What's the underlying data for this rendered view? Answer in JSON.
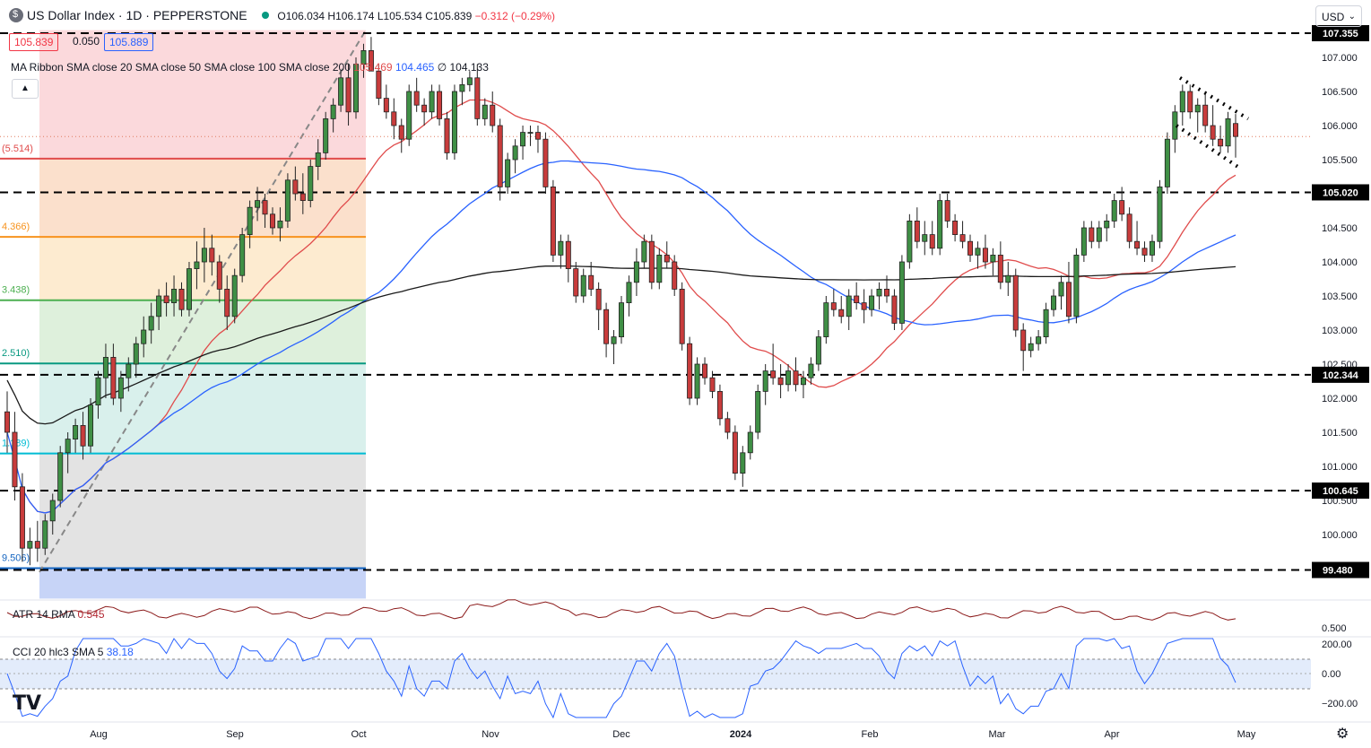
{
  "header": {
    "symbol_title": "US Dollar Index · 1D · PEPPERSTONE",
    "ohlc": "O106.034 H106.174 L105.534 C105.839",
    "change": "−0.312 (−0.29%)",
    "icon": "dollar-icon",
    "status_color": "#089981"
  },
  "price_boxes": {
    "bid": "105.839",
    "spread": "0.050",
    "ask": "105.889"
  },
  "indicators": {
    "ma_ribbon_label": "MA Ribbon SMA close 20 SMA close 50 SMA close 100 SMA close 200",
    "ma_ribbon_values": [
      "105.469",
      "104.465",
      "104.133"
    ],
    "ma_colors": {
      "sma20": "#e04c4c",
      "sma50": "#2962ff",
      "sma200": "#1a1a1a"
    },
    "atr_label": "ATR 14 RMA",
    "atr_value": "0.545",
    "cci_label": "CCI 20 hlc3 SMA 5",
    "cci_value": "38.18"
  },
  "currency_selector": {
    "value": "USD",
    "icon": "chevron-down-icon"
  },
  "collapse_button_icon": "chevron-up-icon",
  "settings_icon": "gear-icon",
  "logo_text": "TV",
  "chart_data": {
    "type": "candlestick",
    "xlabels": [
      "Aug",
      "Sep",
      "Oct",
      "Nov",
      "Dec",
      "2024",
      "Feb",
      "Mar",
      "Apr",
      "May"
    ],
    "price_ticks": [
      "107.000",
      "106.500",
      "106.000",
      "105.500",
      "104.500",
      "104.000",
      "103.500",
      "103.000",
      "102.500",
      "102.000",
      "101.500",
      "101.000",
      "100.500",
      "100.000"
    ],
    "atr_ticks": [
      "0.500"
    ],
    "cci_ticks": [
      "200.00",
      "0.00",
      "−200.00"
    ],
    "ylim": [
      99.3,
      107.5
    ],
    "horizontal_levels": [
      {
        "value": 107.355,
        "label": "107.355"
      },
      {
        "value": 105.02,
        "label": "105.020"
      },
      {
        "value": 102.344,
        "label": "102.344"
      },
      {
        "value": 100.645,
        "label": "100.645"
      },
      {
        "value": 99.48,
        "label": "99.480"
      }
    ],
    "fib_levels": [
      {
        "value": 105.514,
        "label": "(5.514)",
        "color": "#e04c4c",
        "fill": "#fbe0cc"
      },
      {
        "value": 104.366,
        "label": "4.366)",
        "color": "#f7931e",
        "fill": "#fdebd0"
      },
      {
        "value": 103.438,
        "label": "3.438)",
        "color": "#4caf50",
        "fill": "#def0dc"
      },
      {
        "value": 102.51,
        "label": "2.510)",
        "color": "#089981",
        "fill": "#d9f0ec"
      },
      {
        "value": 101.189,
        "label": "1.189)",
        "color": "#00bcd4",
        "fill": "#d6f2f6"
      },
      {
        "value": 99.506,
        "label": "9.506)",
        "color": "#1565c0",
        "fill": "#e0e0e0"
      }
    ],
    "candles": [
      [
        101.8,
        102.1,
        101.2,
        101.5
      ],
      [
        101.5,
        101.8,
        100.5,
        100.7
      ],
      [
        100.7,
        100.9,
        99.6,
        99.8
      ],
      [
        99.8,
        100.1,
        99.55,
        99.9
      ],
      [
        99.9,
        100.2,
        99.6,
        99.8
      ],
      [
        99.8,
        100.3,
        99.7,
        100.2
      ],
      [
        100.2,
        100.6,
        100.0,
        100.5
      ],
      [
        100.5,
        101.3,
        100.4,
        101.2
      ],
      [
        101.2,
        101.5,
        100.9,
        101.4
      ],
      [
        101.4,
        101.7,
        101.2,
        101.6
      ],
      [
        101.6,
        101.8,
        101.1,
        101.3
      ],
      [
        101.3,
        102.0,
        101.2,
        101.9
      ],
      [
        101.9,
        102.4,
        101.7,
        102.3
      ],
      [
        102.3,
        102.8,
        102.0,
        102.6
      ],
      [
        102.6,
        102.8,
        101.9,
        102.0
      ],
      [
        102.0,
        102.4,
        101.8,
        102.3
      ],
      [
        102.3,
        102.6,
        102.1,
        102.5
      ],
      [
        102.5,
        102.9,
        102.3,
        102.8
      ],
      [
        102.8,
        103.2,
        102.6,
        103.0
      ],
      [
        103.0,
        103.4,
        102.8,
        103.2
      ],
      [
        103.2,
        103.6,
        103.0,
        103.5
      ],
      [
        103.5,
        103.7,
        103.2,
        103.4
      ],
      [
        103.4,
        103.8,
        103.2,
        103.6
      ],
      [
        103.6,
        103.7,
        103.2,
        103.3
      ],
      [
        103.3,
        104.0,
        103.2,
        103.9
      ],
      [
        103.9,
        104.3,
        103.6,
        104.0
      ],
      [
        104.0,
        104.5,
        103.7,
        104.2
      ],
      [
        104.2,
        104.4,
        103.8,
        104.0
      ],
      [
        104.0,
        104.1,
        103.4,
        103.6
      ],
      [
        103.6,
        103.8,
        103.0,
        103.2
      ],
      [
        103.2,
        103.9,
        103.1,
        103.8
      ],
      [
        103.8,
        104.5,
        103.7,
        104.4
      ],
      [
        104.4,
        104.9,
        104.2,
        104.8
      ],
      [
        104.8,
        105.1,
        104.6,
        104.9
      ],
      [
        104.9,
        105.0,
        104.5,
        104.7
      ],
      [
        104.7,
        104.8,
        104.4,
        104.5
      ],
      [
        104.5,
        104.8,
        104.3,
        104.6
      ],
      [
        104.6,
        105.3,
        104.5,
        105.2
      ],
      [
        105.2,
        105.4,
        104.9,
        105.0
      ],
      [
        105.0,
        105.3,
        104.7,
        104.9
      ],
      [
        104.9,
        105.5,
        104.8,
        105.4
      ],
      [
        105.4,
        105.8,
        105.2,
        105.6
      ],
      [
        105.6,
        106.2,
        105.5,
        106.1
      ],
      [
        106.1,
        106.4,
        105.9,
        106.3
      ],
      [
        106.3,
        106.8,
        106.2,
        106.7
      ],
      [
        106.7,
        106.9,
        106.0,
        106.2
      ],
      [
        106.2,
        107.0,
        106.1,
        106.9
      ],
      [
        106.9,
        107.2,
        106.7,
        107.1
      ],
      [
        107.1,
        107.3,
        106.8,
        106.8
      ],
      [
        106.8,
        106.9,
        106.3,
        106.4
      ],
      [
        106.4,
        106.6,
        106.1,
        106.2
      ],
      [
        106.2,
        106.4,
        105.8,
        106.0
      ],
      [
        106.0,
        106.1,
        105.6,
        105.8
      ],
      [
        105.8,
        106.6,
        105.7,
        106.5
      ],
      [
        106.5,
        106.7,
        106.2,
        106.3
      ],
      [
        106.3,
        106.4,
        106.0,
        106.2
      ],
      [
        106.2,
        106.6,
        106.1,
        106.5
      ],
      [
        106.5,
        106.6,
        106.0,
        106.1
      ],
      [
        106.1,
        106.2,
        105.5,
        105.6
      ],
      [
        105.6,
        106.6,
        105.5,
        106.5
      ],
      [
        106.5,
        106.7,
        106.3,
        106.6
      ],
      [
        106.6,
        106.8,
        106.5,
        106.7
      ],
      [
        106.7,
        106.9,
        106.0,
        106.1
      ],
      [
        106.1,
        106.4,
        106.0,
        106.3
      ],
      [
        106.3,
        106.5,
        105.9,
        106.0
      ],
      [
        106.0,
        106.1,
        104.9,
        105.1
      ],
      [
        105.1,
        105.6,
        105.0,
        105.5
      ],
      [
        105.5,
        105.8,
        105.3,
        105.7
      ],
      [
        105.7,
        106.0,
        105.5,
        105.9
      ],
      [
        105.9,
        106.0,
        105.7,
        105.9
      ],
      [
        105.9,
        106.0,
        105.6,
        105.8
      ],
      [
        105.8,
        105.9,
        105.0,
        105.1
      ],
      [
        105.1,
        105.2,
        104.0,
        104.1
      ],
      [
        104.1,
        104.4,
        103.9,
        104.3
      ],
      [
        104.3,
        104.4,
        103.7,
        103.9
      ],
      [
        103.9,
        104.0,
        103.4,
        103.5
      ],
      [
        103.5,
        103.9,
        103.4,
        103.8
      ],
      [
        103.8,
        104.0,
        103.5,
        103.6
      ],
      [
        103.6,
        103.7,
        103.0,
        103.3
      ],
      [
        103.3,
        103.4,
        102.6,
        102.8
      ],
      [
        102.8,
        103.0,
        102.5,
        102.9
      ],
      [
        102.9,
        103.5,
        102.8,
        103.4
      ],
      [
        103.4,
        103.8,
        103.2,
        103.7
      ],
      [
        103.7,
        104.2,
        103.5,
        104.0
      ],
      [
        104.0,
        104.4,
        103.9,
        104.3
      ],
      [
        104.3,
        104.4,
        103.6,
        103.7
      ],
      [
        103.7,
        104.2,
        103.6,
        104.1
      ],
      [
        104.1,
        104.3,
        103.9,
        104.0
      ],
      [
        104.0,
        104.1,
        103.5,
        103.6
      ],
      [
        103.6,
        103.7,
        102.7,
        102.8
      ],
      [
        102.8,
        102.9,
        101.9,
        102.0
      ],
      [
        102.0,
        102.6,
        101.9,
        102.5
      ],
      [
        102.5,
        102.6,
        102.2,
        102.3
      ],
      [
        102.3,
        102.4,
        102.0,
        102.1
      ],
      [
        102.1,
        102.2,
        101.6,
        101.7
      ],
      [
        101.7,
        101.8,
        101.4,
        101.5
      ],
      [
        101.5,
        101.6,
        100.8,
        100.9
      ],
      [
        100.9,
        101.3,
        100.7,
        101.2
      ],
      [
        101.2,
        101.6,
        101.1,
        101.5
      ],
      [
        101.5,
        102.2,
        101.4,
        102.1
      ],
      [
        102.1,
        102.5,
        101.9,
        102.4
      ],
      [
        102.4,
        102.8,
        102.2,
        102.3
      ],
      [
        102.3,
        102.5,
        102.0,
        102.2
      ],
      [
        102.2,
        102.5,
        102.1,
        102.4
      ],
      [
        102.4,
        102.6,
        102.1,
        102.2
      ],
      [
        102.2,
        102.4,
        102.0,
        102.3
      ],
      [
        102.3,
        102.6,
        102.2,
        102.5
      ],
      [
        102.5,
        103.0,
        102.4,
        102.9
      ],
      [
        102.9,
        103.5,
        102.8,
        103.4
      ],
      [
        103.4,
        103.6,
        103.2,
        103.3
      ],
      [
        103.3,
        103.5,
        103.1,
        103.2
      ],
      [
        103.2,
        103.6,
        103.0,
        103.5
      ],
      [
        103.5,
        103.7,
        103.3,
        103.4
      ],
      [
        103.4,
        103.6,
        103.1,
        103.3
      ],
      [
        103.3,
        103.6,
        103.2,
        103.5
      ],
      [
        103.5,
        103.7,
        103.3,
        103.6
      ],
      [
        103.6,
        103.8,
        103.4,
        103.5
      ],
      [
        103.5,
        103.6,
        103.0,
        103.1
      ],
      [
        103.1,
        104.1,
        103.0,
        104.0
      ],
      [
        104.0,
        104.7,
        103.9,
        104.6
      ],
      [
        104.6,
        104.8,
        104.2,
        104.3
      ],
      [
        104.3,
        104.6,
        104.1,
        104.4
      ],
      [
        104.4,
        104.6,
        104.1,
        104.2
      ],
      [
        104.2,
        105.0,
        104.1,
        104.9
      ],
      [
        104.9,
        105.0,
        104.5,
        104.6
      ],
      [
        104.6,
        104.7,
        104.3,
        104.4
      ],
      [
        104.4,
        104.6,
        104.2,
        104.3
      ],
      [
        104.3,
        104.4,
        104.0,
        104.1
      ],
      [
        104.1,
        104.3,
        103.9,
        104.2
      ],
      [
        104.2,
        104.4,
        103.9,
        104.0
      ],
      [
        104.0,
        104.2,
        103.8,
        104.1
      ],
      [
        104.1,
        104.3,
        103.6,
        103.7
      ],
      [
        103.7,
        104.0,
        103.5,
        103.8
      ],
      [
        103.8,
        103.9,
        102.9,
        103.0
      ],
      [
        103.0,
        103.1,
        102.4,
        102.7
      ],
      [
        102.7,
        102.9,
        102.6,
        102.8
      ],
      [
        102.8,
        103.0,
        102.7,
        102.9
      ],
      [
        102.9,
        103.4,
        102.8,
        103.3
      ],
      [
        103.3,
        103.6,
        103.2,
        103.5
      ],
      [
        103.5,
        103.8,
        103.3,
        103.7
      ],
      [
        103.7,
        104.0,
        103.1,
        103.2
      ],
      [
        103.2,
        104.2,
        103.1,
        104.1
      ],
      [
        104.1,
        104.6,
        104.0,
        104.5
      ],
      [
        104.5,
        104.6,
        104.2,
        104.3
      ],
      [
        104.3,
        104.6,
        104.2,
        104.5
      ],
      [
        104.5,
        104.7,
        104.3,
        104.6
      ],
      [
        104.6,
        105.0,
        104.5,
        104.9
      ],
      [
        104.9,
        105.1,
        104.6,
        104.7
      ],
      [
        104.7,
        104.8,
        104.2,
        104.3
      ],
      [
        104.3,
        104.6,
        104.1,
        104.2
      ],
      [
        104.2,
        104.3,
        104.0,
        104.1
      ],
      [
        104.1,
        104.4,
        104.0,
        104.3
      ],
      [
        104.3,
        105.2,
        104.2,
        105.1
      ],
      [
        105.1,
        105.9,
        105.0,
        105.8
      ],
      [
        105.8,
        106.3,
        105.6,
        106.2
      ],
      [
        106.2,
        106.6,
        106.0,
        106.5
      ],
      [
        106.5,
        106.6,
        106.1,
        106.2
      ],
      [
        106.2,
        106.4,
        105.9,
        106.3
      ],
      [
        106.3,
        106.5,
        105.9,
        106.0
      ],
      [
        106.0,
        106.3,
        105.7,
        105.8
      ],
      [
        105.8,
        106.0,
        105.6,
        105.7
      ],
      [
        105.7,
        106.2,
        105.6,
        106.1
      ],
      [
        106.03,
        106.17,
        105.53,
        105.84
      ]
    ]
  }
}
